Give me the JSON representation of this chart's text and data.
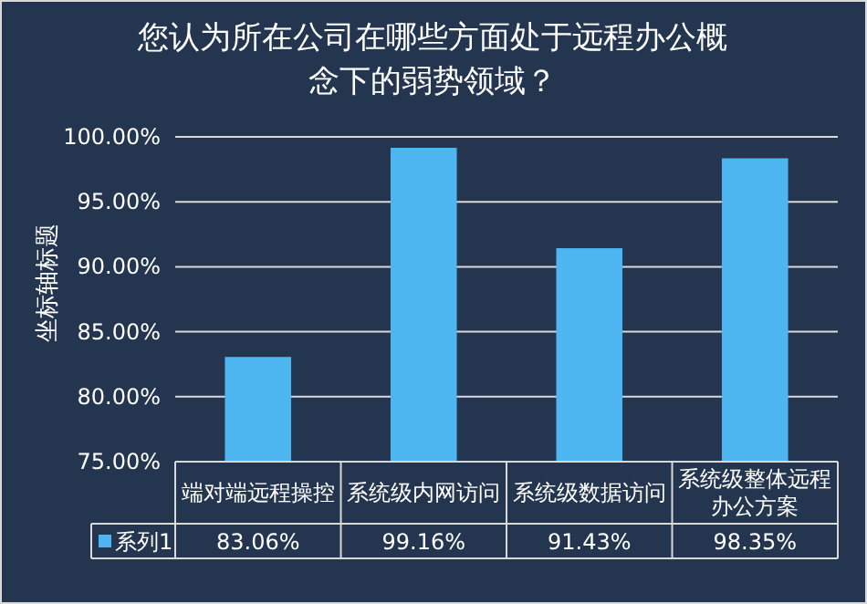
{
  "chart_data": {
    "type": "bar",
    "title": "您认为所在公司在哪些方面处于远程办公概念下的弱势领域？",
    "ylabel": "坐标轴标题",
    "categories": [
      "端对端远程操控",
      "系统级内网访问",
      "系统级数据访问",
      "系统级整体远程办公方案"
    ],
    "series": [
      {
        "name": "系列1",
        "color": "#4db5f0",
        "values": [
          83.06,
          99.16,
          91.43,
          98.35
        ],
        "value_labels": [
          "83.06%",
          "99.16%",
          "91.43%",
          "98.35%"
        ]
      }
    ],
    "ylim": [
      75,
      100
    ],
    "yticks": [
      {
        "value": 75,
        "label": "75.00%"
      },
      {
        "value": 80,
        "label": "80.00%"
      },
      {
        "value": 85,
        "label": "85.00%"
      },
      {
        "value": 90,
        "label": "90.00%"
      },
      {
        "value": 95,
        "label": "95.00%"
      },
      {
        "value": 100,
        "label": "100.00%"
      }
    ],
    "grid": "y",
    "legend": "bottom"
  }
}
